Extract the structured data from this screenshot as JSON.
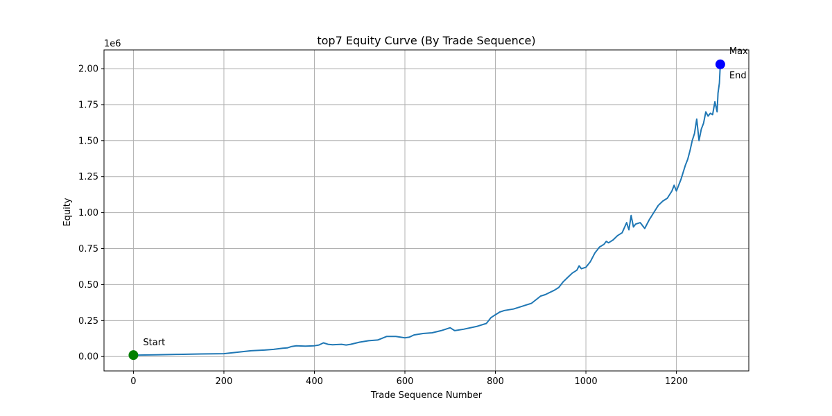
{
  "chart_data": {
    "type": "line",
    "title": "top7 Equity Curve (By Trade Sequence)",
    "xlabel": "Trade Sequence Number",
    "ylabel": "Equity",
    "y_exponent_label": "1e6",
    "xlim": [
      -65,
      1360
    ],
    "ylim": [
      -0.1,
      2.13
    ],
    "y_scale": 1000000,
    "xticks": [
      0,
      200,
      400,
      600,
      800,
      1000,
      1200
    ],
    "yticks": [
      0.0,
      0.25,
      0.5,
      0.75,
      1.0,
      1.25,
      1.5,
      1.75,
      2.0
    ],
    "xtick_labels": [
      "0",
      "200",
      "400",
      "600",
      "800",
      "1000",
      "1200"
    ],
    "ytick_labels": [
      "0.00",
      "0.25",
      "0.50",
      "0.75",
      "1.00",
      "1.25",
      "1.50",
      "1.75",
      "2.00"
    ],
    "grid": true,
    "line_color": "#1f77b4",
    "series": [
      {
        "x": [
          0,
          50,
          100,
          150,
          200,
          230,
          260,
          290,
          310,
          330,
          340,
          350,
          360,
          380,
          400,
          410,
          420,
          430,
          440,
          460,
          470,
          480,
          500,
          520,
          540,
          560,
          580,
          600,
          610,
          620,
          640,
          660,
          680,
          700,
          705,
          710,
          730,
          760,
          780,
          790,
          800,
          810,
          820,
          840,
          860,
          880,
          900,
          910,
          930,
          940,
          950,
          960,
          970,
          980,
          985,
          990,
          1000,
          1010,
          1020,
          1030,
          1040,
          1045,
          1050,
          1060,
          1070,
          1080,
          1090,
          1095,
          1100,
          1105,
          1110,
          1120,
          1130,
          1140,
          1150,
          1160,
          1170,
          1180,
          1190,
          1195,
          1200,
          1210,
          1220,
          1225,
          1230,
          1235,
          1240,
          1245,
          1250,
          1255,
          1260,
          1265,
          1270,
          1275,
          1280,
          1285,
          1290,
          1292,
          1295,
          1297
        ],
        "y": [
          0.01,
          0.012,
          0.015,
          0.018,
          0.02,
          0.03,
          0.04,
          0.045,
          0.05,
          0.058,
          0.06,
          0.07,
          0.075,
          0.072,
          0.075,
          0.08,
          0.095,
          0.085,
          0.082,
          0.085,
          0.08,
          0.085,
          0.1,
          0.11,
          0.115,
          0.14,
          0.14,
          0.13,
          0.135,
          0.15,
          0.16,
          0.165,
          0.18,
          0.2,
          0.19,
          0.18,
          0.19,
          0.21,
          0.23,
          0.27,
          0.29,
          0.31,
          0.32,
          0.33,
          0.35,
          0.37,
          0.42,
          0.43,
          0.46,
          0.48,
          0.52,
          0.55,
          0.58,
          0.6,
          0.63,
          0.61,
          0.62,
          0.66,
          0.72,
          0.76,
          0.78,
          0.8,
          0.79,
          0.81,
          0.84,
          0.86,
          0.93,
          0.88,
          0.98,
          0.9,
          0.92,
          0.93,
          0.89,
          0.95,
          1.0,
          1.05,
          1.08,
          1.1,
          1.15,
          1.19,
          1.15,
          1.23,
          1.33,
          1.37,
          1.43,
          1.5,
          1.55,
          1.65,
          1.5,
          1.58,
          1.62,
          1.7,
          1.67,
          1.69,
          1.68,
          1.77,
          1.7,
          1.83,
          1.9,
          2.03
        ]
      }
    ],
    "markers": [
      {
        "name": "Start",
        "x": 0,
        "y": 0.01,
        "color": "#008000"
      },
      {
        "name": "Max",
        "x": 1297,
        "y": 2.03,
        "color": "#0000ff"
      }
    ],
    "annotations": [
      {
        "text": "Start",
        "x": 0,
        "y": 0.01
      },
      {
        "text": "Max",
        "x": 1297,
        "y": 2.03
      },
      {
        "text": "End",
        "x": 1297,
        "y": 2.03
      }
    ]
  }
}
